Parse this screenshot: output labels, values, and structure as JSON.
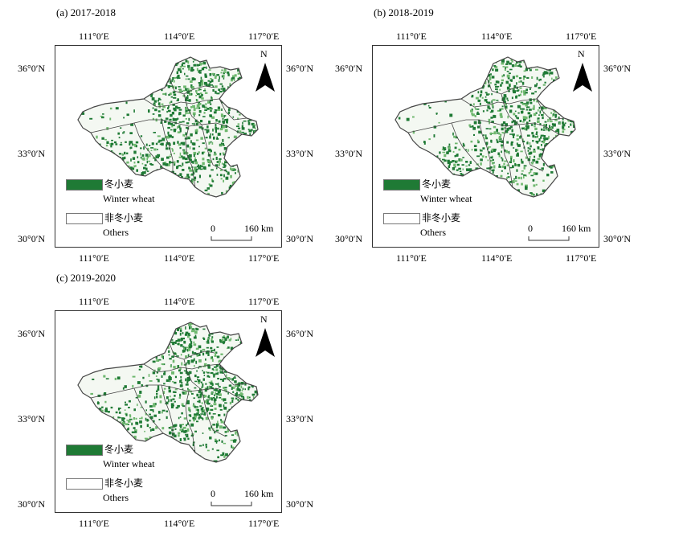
{
  "colors": {
    "winter_wheat": "#1f7a35",
    "winter_wheat_light": "#6fb86f",
    "others": "#ffffff",
    "boundary": "#444444"
  },
  "icons": {
    "north_arrow": "north-arrow-icon"
  },
  "panels": [
    {
      "title": "(a) 2017-2018",
      "top_ticks": [
        "111°0′E",
        "114°0′E",
        "117°0′E"
      ],
      "bottom_ticks": [
        "111°0′E",
        "114°0′E",
        "117°0′E"
      ],
      "left_ticks": [
        "36°0′N",
        "33°0′N",
        "30°0′N"
      ],
      "right_ticks": [
        "36°0′N",
        "33°0′N",
        "30°0′N"
      ],
      "north": "N",
      "legend": [
        {
          "label_cn": "冬小麦",
          "label_en": "Winter wheat"
        },
        {
          "label_cn": "非冬小麦",
          "label_en": "Others"
        }
      ],
      "scale": {
        "start": "0",
        "end": "160 km"
      }
    },
    {
      "title": "(b) 2018-2019",
      "top_ticks": [
        "111°0′E",
        "114°0′E",
        "117°0′E"
      ],
      "bottom_ticks": [
        "111°0′E",
        "114°0′E",
        "117°0′E"
      ],
      "left_ticks": [
        "36°0′N",
        "33°0′N",
        "30°0′N"
      ],
      "right_ticks": [
        "36°0′N",
        "33°0′N",
        "30°0′N"
      ],
      "north": "N",
      "legend": [
        {
          "label_cn": "冬小麦",
          "label_en": "Winter wheat"
        },
        {
          "label_cn": "非冬小麦",
          "label_en": "Others"
        }
      ],
      "scale": {
        "start": "0",
        "end": "160 km"
      }
    },
    {
      "title": "(c) 2019-2020",
      "top_ticks": [
        "111°0′E",
        "114°0′E",
        "117°0′E"
      ],
      "bottom_ticks": [
        "111°0′E",
        "114°0′E",
        "117°0′E"
      ],
      "left_ticks": [
        "36°0′N",
        "33°0′N",
        "30°0′N"
      ],
      "right_ticks": [
        "36°0′N",
        "33°0′N",
        "30°0′N"
      ],
      "north": "N",
      "legend": [
        {
          "label_cn": "冬小麦",
          "label_en": "Winter wheat"
        },
        {
          "label_cn": "非冬小麦",
          "label_en": "Others"
        }
      ],
      "scale": {
        "start": "0",
        "end": "160 km"
      }
    }
  ]
}
